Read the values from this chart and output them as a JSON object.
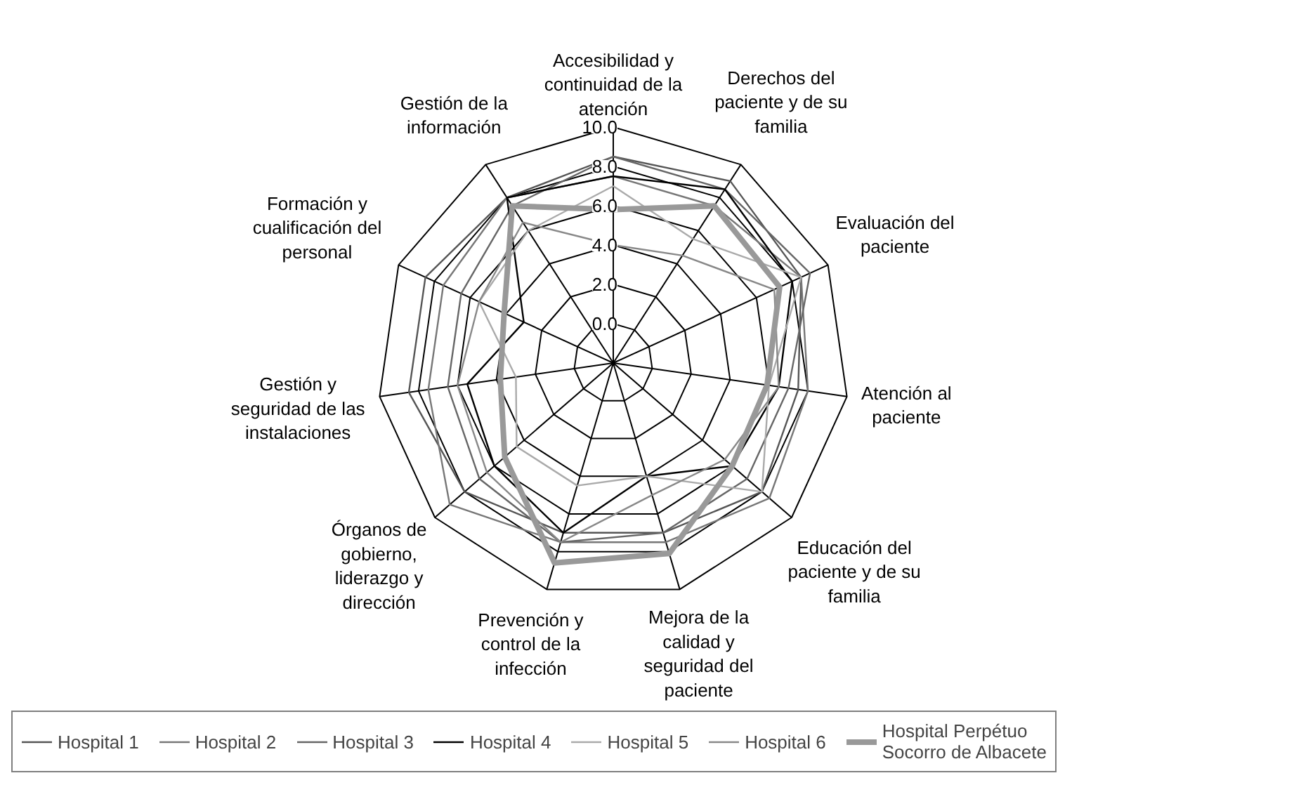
{
  "chart_data": {
    "type": "radar",
    "categories": [
      "Accesibilidad y continuidad de la atención",
      "Derechos del paciente y de su familia",
      "Evaluación del paciente",
      "Atención al paciente",
      "Educación del paciente y de su familia",
      "Mejora de la calidad y seguridad del paciente",
      "Prevención y control de la infección",
      "Órganos de gobierno, liderazgo y dirección",
      "Gestión y seguridad de las instalaciones",
      "Formación y cualificación del personal",
      "Gestión de la información"
    ],
    "ylim": [
      -2,
      10
    ],
    "yticks": [
      {
        "value": 0,
        "label": "0.0"
      },
      {
        "value": 2,
        "label": "2.0"
      },
      {
        "value": 4,
        "label": "4.0"
      },
      {
        "value": 6,
        "label": "6.0"
      },
      {
        "value": 8,
        "label": "8.0"
      },
      {
        "value": 10,
        "label": "10.0"
      }
    ],
    "grid": true,
    "legend": "bottom",
    "series": [
      {
        "name": "Hospital 1",
        "color": "#555555",
        "values": [
          8.5,
          9.0,
          8.5,
          7.5,
          8.0,
          7.0,
          7.0,
          8.0,
          8.5,
          8.5,
          8.0
        ]
      },
      {
        "name": "Hospital 2",
        "color": "#777777",
        "values": [
          7.5,
          7.5,
          8.5,
          8.0,
          8.5,
          7.5,
          7.5,
          9.0,
          7.5,
          7.5,
          8.0
        ]
      },
      {
        "name": "Hospital 3",
        "color": "#666666",
        "values": [
          8.5,
          8.5,
          9.0,
          7.0,
          7.0,
          7.0,
          7.5,
          7.0,
          6.5,
          6.5,
          7.5
        ]
      },
      {
        "name": "Hospital 4",
        "color": "#000000",
        "values": [
          7.5,
          8.5,
          8.0,
          6.5,
          6.0,
          4.0,
          7.0,
          6.0,
          5.5,
          3.0,
          8.0
        ]
      },
      {
        "name": "Hospital 5",
        "color": "#aaaaaa",
        "values": [
          7.0,
          5.5,
          8.5,
          6.0,
          8.0,
          4.0,
          4.5,
          4.5,
          3.0,
          5.5,
          6.0
        ]
      },
      {
        "name": "Hospital 6",
        "color": "#888888",
        "values": [
          4.0,
          4.5,
          7.0,
          6.5,
          5.5,
          5.0,
          7.5,
          6.5,
          6.0,
          5.5,
          6.5
        ]
      },
      {
        "name": "Hospital Perpétuo Socorro de Albacete",
        "color": "#999999",
        "values": [
          5.8,
          7.5,
          7.3,
          5.9,
          6.0,
          8.1,
          8.6,
          5.3,
          3.8,
          4.1,
          7.5
        ]
      }
    ]
  }
}
